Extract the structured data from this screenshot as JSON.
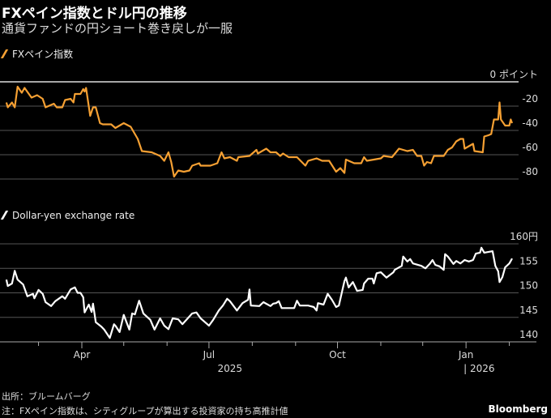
{
  "title": "FXペイン指数とドル円の推移",
  "subtitle": "通貨ファンドの円ショート巻き戻しが一服",
  "source": "出所：ブルームバーグ",
  "note": "注：FXペイン指数は、シティグループが算出する投資家の持ち高推計値",
  "brand": "Bloomberg",
  "colors": {
    "pain": "#f5a033",
    "usdjpy": "#ffffff",
    "grid": "#555555"
  },
  "chart_data": [
    {
      "type": "line",
      "title": "FXペイン指数",
      "legend": "FXペイン指数",
      "x_unit": "days since 2025-01-01",
      "ylim": [
        -80,
        0
      ],
      "yticks": [
        {
          "v": 0,
          "label": "0 ポイント"
        },
        {
          "v": -20,
          "label": "-20"
        },
        {
          "v": -40,
          "label": "-40"
        },
        {
          "v": -60,
          "label": "-60"
        },
        {
          "v": -80,
          "label": "-80"
        }
      ],
      "points": [
        [
          36,
          -17
        ],
        [
          37,
          -21
        ],
        [
          40,
          -17
        ],
        [
          42,
          -21
        ],
        [
          44,
          -4
        ],
        [
          47,
          -9
        ],
        [
          49,
          -5
        ],
        [
          54,
          -13
        ],
        [
          58,
          -11
        ],
        [
          62,
          -14
        ],
        [
          64,
          -21
        ],
        [
          70,
          -18
        ],
        [
          72,
          -21
        ],
        [
          76,
          -21
        ],
        [
          78,
          -15
        ],
        [
          82,
          -14
        ],
        [
          84,
          -17
        ],
        [
          85,
          -10
        ],
        [
          89,
          -10
        ],
        [
          91,
          -6
        ],
        [
          92,
          -8
        ],
        [
          93,
          -5
        ],
        [
          96,
          -28
        ],
        [
          98,
          -21
        ],
        [
          100,
          -21
        ],
        [
          103,
          -34
        ],
        [
          105,
          -35
        ],
        [
          111,
          -35
        ],
        [
          114,
          -38
        ],
        [
          120,
          -34
        ],
        [
          125,
          -37
        ],
        [
          130,
          -47
        ],
        [
          133,
          -57
        ],
        [
          140,
          -58
        ],
        [
          146,
          -61
        ],
        [
          149,
          -65
        ],
        [
          152,
          -58
        ],
        [
          154,
          -66
        ],
        [
          156,
          -78
        ],
        [
          159,
          -73
        ],
        [
          163,
          -74
        ],
        [
          167,
          -73
        ],
        [
          169,
          -69
        ],
        [
          174,
          -67
        ],
        [
          175,
          -69
        ],
        [
          180,
          -69
        ],
        [
          182,
          -69
        ],
        [
          187,
          -67
        ],
        [
          190,
          -58
        ],
        [
          192,
          -63
        ],
        [
          196,
          -62
        ],
        [
          201,
          -65
        ],
        [
          202,
          -62
        ],
        [
          210,
          -61
        ],
        [
          215,
          -56
        ],
        [
          216,
          -59
        ],
        [
          222,
          -55
        ],
        [
          225,
          -58
        ],
        [
          229,
          -58
        ],
        [
          230,
          -59
        ],
        [
          232,
          -61
        ],
        [
          234,
          -59
        ],
        [
          238,
          -62
        ],
        [
          244,
          -62
        ],
        [
          250,
          -69
        ],
        [
          252,
          -65
        ],
        [
          258,
          -63
        ],
        [
          262,
          -65
        ],
        [
          267,
          -65
        ],
        [
          272,
          -74
        ],
        [
          275,
          -71
        ],
        [
          278,
          -75
        ],
        [
          279,
          -64
        ],
        [
          285,
          -67
        ],
        [
          290,
          -67
        ],
        [
          292,
          -62
        ],
        [
          294,
          -65
        ],
        [
          304,
          -63
        ],
        [
          306,
          -61
        ],
        [
          312,
          -62
        ],
        [
          317,
          -55
        ],
        [
          323,
          -57
        ],
        [
          327,
          -56
        ],
        [
          330,
          -61
        ],
        [
          333,
          -61
        ],
        [
          335,
          -69
        ],
        [
          337,
          -66
        ],
        [
          340,
          -67
        ],
        [
          342,
          -61
        ],
        [
          349,
          -61
        ],
        [
          352,
          -56
        ],
        [
          355,
          -54
        ],
        [
          358,
          -49
        ],
        [
          361,
          -47
        ],
        [
          363,
          -47
        ],
        [
          364,
          -55
        ],
        [
          370,
          -51
        ],
        [
          371,
          -57
        ],
        [
          377,
          -58
        ],
        [
          378,
          -45
        ],
        [
          381,
          -44
        ],
        [
          383,
          -43
        ],
        [
          385,
          -31
        ],
        [
          388,
          -31
        ],
        [
          389,
          -17
        ],
        [
          390,
          -31
        ],
        [
          393,
          -36
        ],
        [
          396,
          -36
        ],
        [
          397,
          -31
        ],
        [
          398,
          -34
        ]
      ]
    },
    {
      "type": "line",
      "title": "Dollar-yen exchange rate",
      "legend": "Dollar-yen exchange rate",
      "x_unit": "days since 2025-01-01",
      "ylim": [
        140,
        160
      ],
      "yticks": [
        {
          "v": 160,
          "label": "160円"
        },
        {
          "v": 155,
          "label": "155"
        },
        {
          "v": 150,
          "label": "150"
        },
        {
          "v": 145,
          "label": "145"
        },
        {
          "v": 140,
          "label": "140"
        }
      ],
      "points": [
        [
          36,
          152.7
        ],
        [
          37,
          151.4
        ],
        [
          40,
          151.9
        ],
        [
          42,
          154.5
        ],
        [
          44,
          152.7
        ],
        [
          48,
          151.7
        ],
        [
          51,
          149.3
        ],
        [
          55,
          149.8
        ],
        [
          56,
          148.9
        ],
        [
          59,
          150.6
        ],
        [
          62,
          149.8
        ],
        [
          64,
          148.1
        ],
        [
          68,
          147.3
        ],
        [
          71,
          148.3
        ],
        [
          76,
          149.3
        ],
        [
          78,
          148.8
        ],
        [
          82,
          150.7
        ],
        [
          85,
          151.1
        ],
        [
          87,
          150
        ],
        [
          89,
          150
        ],
        [
          91,
          149.1
        ],
        [
          92,
          146
        ],
        [
          95,
          147.6
        ],
        [
          97,
          146.1
        ],
        [
          98,
          147.8
        ],
        [
          100,
          144
        ],
        [
          104,
          143.1
        ],
        [
          106,
          142.5
        ],
        [
          110,
          140.8
        ],
        [
          113,
          143.6
        ],
        [
          114,
          143.3
        ],
        [
          117,
          142
        ],
        [
          120,
          145.5
        ],
        [
          124,
          142.5
        ],
        [
          126,
          145.8
        ],
        [
          128,
          145.6
        ],
        [
          131,
          148.4
        ],
        [
          134,
          145.8
        ],
        [
          139,
          144.5
        ],
        [
          142,
          142.5
        ],
        [
          146,
          144.8
        ],
        [
          149,
          143.3
        ],
        [
          152,
          142.6
        ],
        [
          155,
          144.8
        ],
        [
          159,
          144.6
        ],
        [
          162,
          143.6
        ],
        [
          169,
          145.8
        ],
        [
          172,
          146
        ],
        [
          175,
          144.8
        ],
        [
          181,
          143.3
        ],
        [
          184,
          144.5
        ],
        [
          188,
          146.4
        ],
        [
          191,
          147.4
        ],
        [
          194,
          148.8
        ],
        [
          196,
          148.3
        ],
        [
          201,
          146.4
        ],
        [
          205,
          147.9
        ],
        [
          209,
          148.6
        ],
        [
          210,
          150.7
        ],
        [
          211,
          147.4
        ],
        [
          217,
          147.3
        ],
        [
          220,
          148.1
        ],
        [
          225,
          147.3
        ],
        [
          227,
          147.8
        ],
        [
          229,
          147.9
        ],
        [
          231,
          148.3
        ],
        [
          233,
          146.9
        ],
        [
          237,
          146.9
        ],
        [
          242,
          146.9
        ],
        [
          244,
          148.4
        ],
        [
          246,
          147.4
        ],
        [
          252,
          147.4
        ],
        [
          256,
          147.1
        ],
        [
          258,
          146.4
        ],
        [
          259,
          147.9
        ],
        [
          263,
          147.6
        ],
        [
          266,
          149.8
        ],
        [
          269,
          148.6
        ],
        [
          272,
          147.1
        ],
        [
          274,
          147.4
        ],
        [
          278,
          152.4
        ],
        [
          279,
          153.1
        ],
        [
          281,
          151.1
        ],
        [
          284,
          152.2
        ],
        [
          287,
          150.4
        ],
        [
          291,
          150.6
        ],
        [
          292,
          151.9
        ],
        [
          295,
          152.9
        ],
        [
          298,
          152.9
        ],
        [
          299,
          151.9
        ],
        [
          301,
          154
        ],
        [
          304,
          154.2
        ],
        [
          308,
          153.1
        ],
        [
          313,
          154.2
        ],
        [
          314,
          154.7
        ],
        [
          319,
          155.5
        ],
        [
          320,
          157.4
        ],
        [
          323,
          156.4
        ],
        [
          325,
          156.9
        ],
        [
          327,
          156
        ],
        [
          333,
          155.5
        ],
        [
          336,
          155
        ],
        [
          339,
          155.9
        ],
        [
          341,
          156.7
        ],
        [
          343,
          155.7
        ],
        [
          346,
          155.4
        ],
        [
          349,
          154.7
        ],
        [
          350,
          157.9
        ],
        [
          352,
          157.4
        ],
        [
          356,
          155.9
        ],
        [
          358,
          156.5
        ],
        [
          361,
          156
        ],
        [
          364,
          156.7
        ],
        [
          367,
          156.4
        ],
        [
          370,
          156.7
        ],
        [
          372,
          158
        ],
        [
          375,
          158.2
        ],
        [
          376,
          159.2
        ],
        [
          378,
          158.2
        ],
        [
          384,
          158.5
        ],
        [
          386,
          155.5
        ],
        [
          388,
          154.4
        ],
        [
          389,
          152.2
        ],
        [
          391,
          153.2
        ],
        [
          393,
          155.2
        ],
        [
          396,
          156
        ],
        [
          398,
          157
        ]
      ]
    }
  ],
  "xaxis": {
    "ticks": [
      {
        "d": 59
      },
      {
        "d": 90,
        "label": "Apr"
      },
      {
        "d": 120
      },
      {
        "d": 151
      },
      {
        "d": 181,
        "label": "Jul"
      },
      {
        "d": 212
      },
      {
        "d": 243
      },
      {
        "d": 273,
        "label": "Oct"
      },
      {
        "d": 304
      },
      {
        "d": 334
      },
      {
        "d": 365,
        "label": "Jan"
      },
      {
        "d": 396
      }
    ],
    "years": [
      {
        "label": "2025"
      },
      {
        "label": "| 2026"
      }
    ]
  }
}
